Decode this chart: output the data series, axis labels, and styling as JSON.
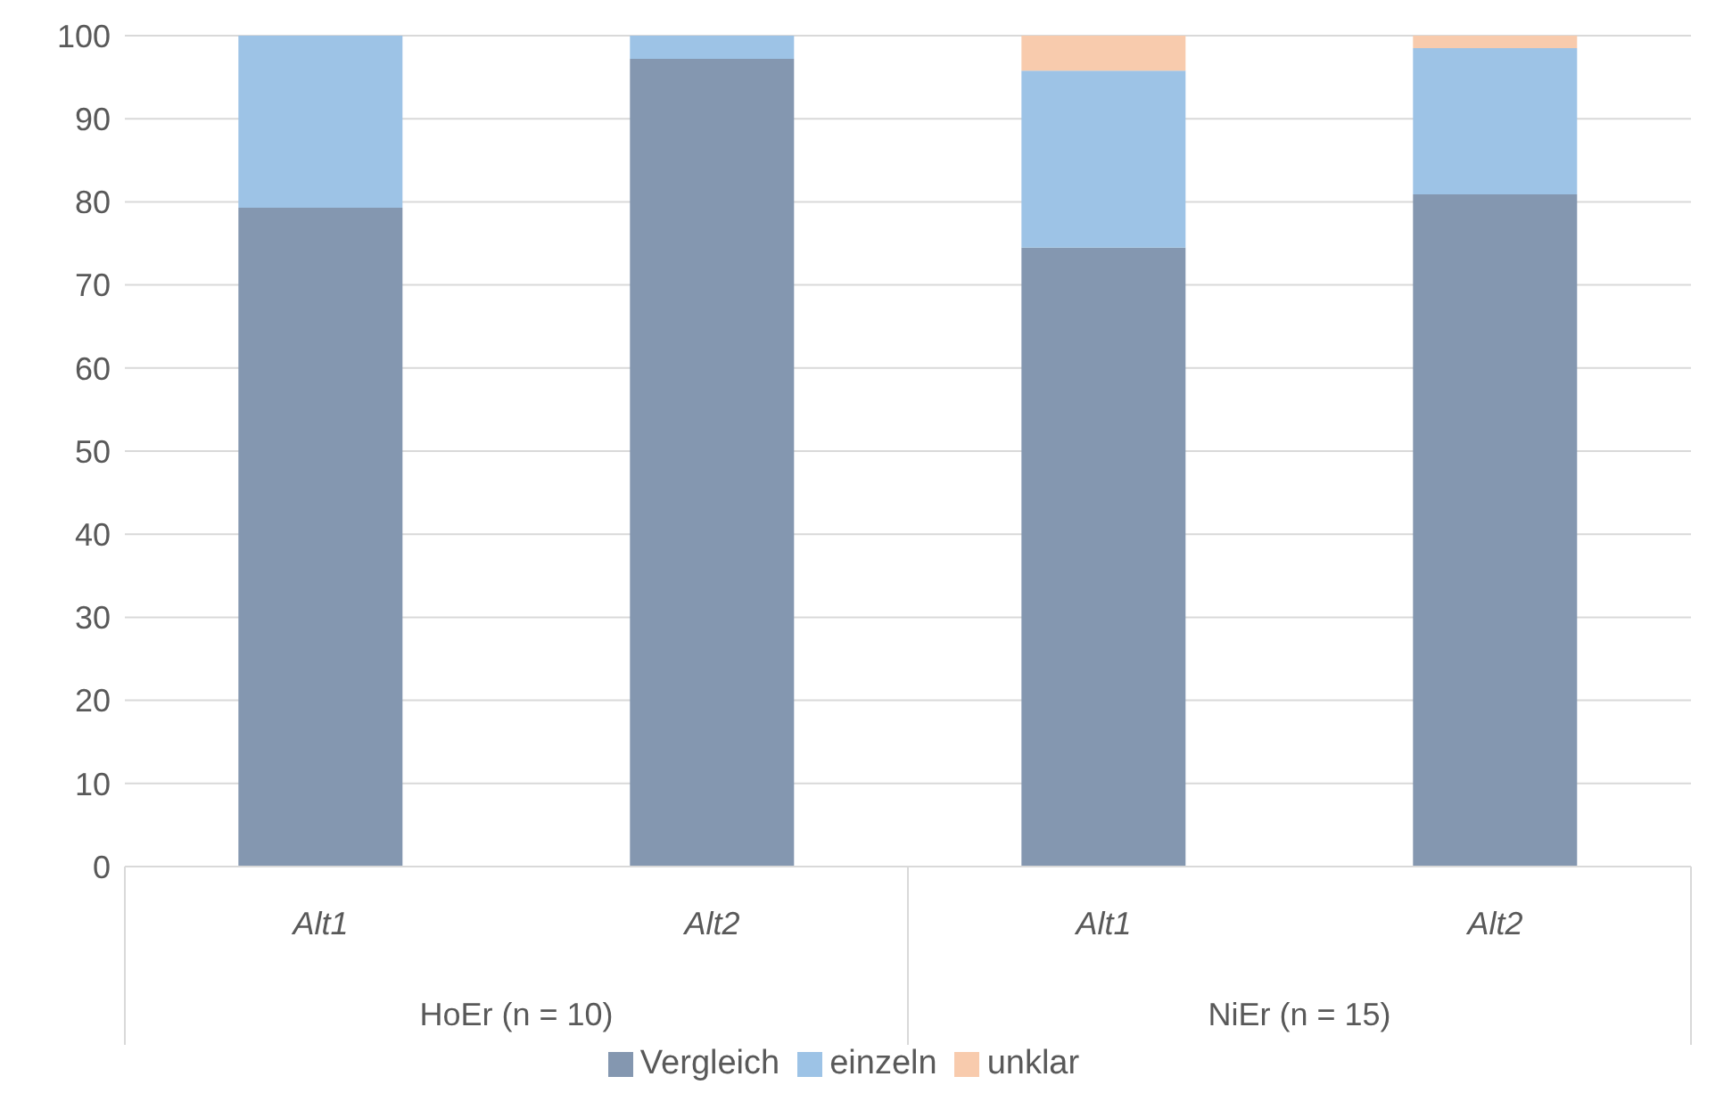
{
  "chart_data": {
    "type": "bar",
    "stacked": true,
    "categories": [
      "Alt1",
      "Alt2",
      "Alt1",
      "Alt2"
    ],
    "series": [
      {
        "name": "Vergleich",
        "color": "#8497b0",
        "values": [
          79.3,
          97.2,
          74.5,
          80.9
        ]
      },
      {
        "name": "einzeln",
        "color": "#9dc3e6",
        "values": [
          20.7,
          2.8,
          21.3,
          17.6
        ]
      },
      {
        "name": "unklar",
        "color": "#f8cbad",
        "values": [
          0,
          0,
          4.2,
          1.5
        ]
      }
    ],
    "annotations": [
      "HoEr (n = 10)",
      "NiEr (n = 15)"
    ],
    "ylim": [
      0,
      100
    ],
    "yticks": [
      0,
      10,
      20,
      30,
      40,
      50,
      60,
      70,
      80,
      90,
      100
    ],
    "grid": "y",
    "legend": "bottom"
  }
}
